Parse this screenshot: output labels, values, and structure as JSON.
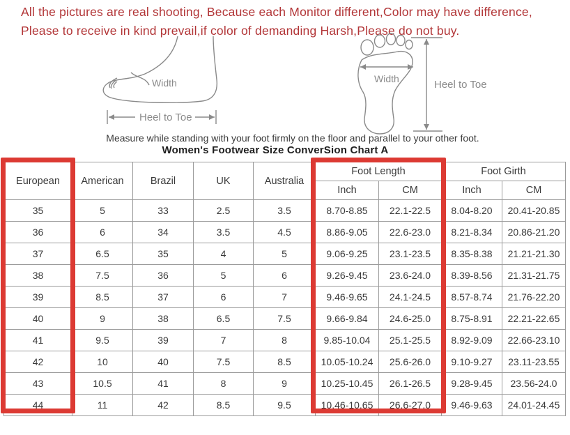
{
  "notice": {
    "line1": "All the pictures are real shooting, Because each Monitor different,Color may have difference,",
    "line2": "Please to receive in kind prevail,if color of demanding Harsh,Please do not buy."
  },
  "diagrams": {
    "side_view": {
      "width_label": "Width",
      "length_label": "Heel to Toe"
    },
    "top_view": {
      "width_label": "Width",
      "length_label": "Heel to Toe"
    }
  },
  "caption": "Measure while standing with your foot firmly on the floor and parallel to your other foot.",
  "title": "Women's Footwear Size ConverSion Chart A",
  "table": {
    "columns": [
      "European",
      "American",
      "Brazil",
      "UK",
      "Australia"
    ],
    "groups": [
      {
        "label": "Foot Length",
        "sub": [
          "Inch",
          "CM"
        ]
      },
      {
        "label": "Foot Girth",
        "sub": [
          "Inch",
          "CM"
        ]
      }
    ],
    "rows": [
      [
        "35",
        "5",
        "33",
        "2.5",
        "3.5",
        "8.70-8.85",
        "22.1-22.5",
        "8.04-8.20",
        "20.41-20.85"
      ],
      [
        "36",
        "6",
        "34",
        "3.5",
        "4.5",
        "8.86-9.05",
        "22.6-23.0",
        "8.21-8.34",
        "20.86-21.20"
      ],
      [
        "37",
        "6.5",
        "35",
        "4",
        "5",
        "9.06-9.25",
        "23.1-23.5",
        "8.35-8.38",
        "21.21-21.30"
      ],
      [
        "38",
        "7.5",
        "36",
        "5",
        "6",
        "9.26-9.45",
        "23.6-24.0",
        "8.39-8.56",
        "21.31-21.75"
      ],
      [
        "39",
        "8.5",
        "37",
        "6",
        "7",
        "9.46-9.65",
        "24.1-24.5",
        "8.57-8.74",
        "21.76-22.20"
      ],
      [
        "40",
        "9",
        "38",
        "6.5",
        "7.5",
        "9.66-9.84",
        "24.6-25.0",
        "8.75-8.91",
        "22.21-22.65"
      ],
      [
        "41",
        "9.5",
        "39",
        "7",
        "8",
        "9.85-10.04",
        "25.1-25.5",
        "8.92-9.09",
        "22.66-23.10"
      ],
      [
        "42",
        "10",
        "40",
        "7.5",
        "8.5",
        "10.05-10.24",
        "25.6-26.0",
        "9.10-9.27",
        "23.11-23.55"
      ],
      [
        "43",
        "10.5",
        "41",
        "8",
        "9",
        "10.25-10.45",
        "26.1-26.5",
        "9.28-9.45",
        "23.56-24.0"
      ],
      [
        "44",
        "11",
        "42",
        "8.5",
        "9.5",
        "10.46-10.65",
        "26.6-27.0",
        "9.46-9.63",
        "24.01-24.45"
      ]
    ]
  },
  "colors": {
    "notice_red": "#b23537",
    "highlight_red": "#dc3a33",
    "table_border_gray": "#9b9b9b"
  }
}
